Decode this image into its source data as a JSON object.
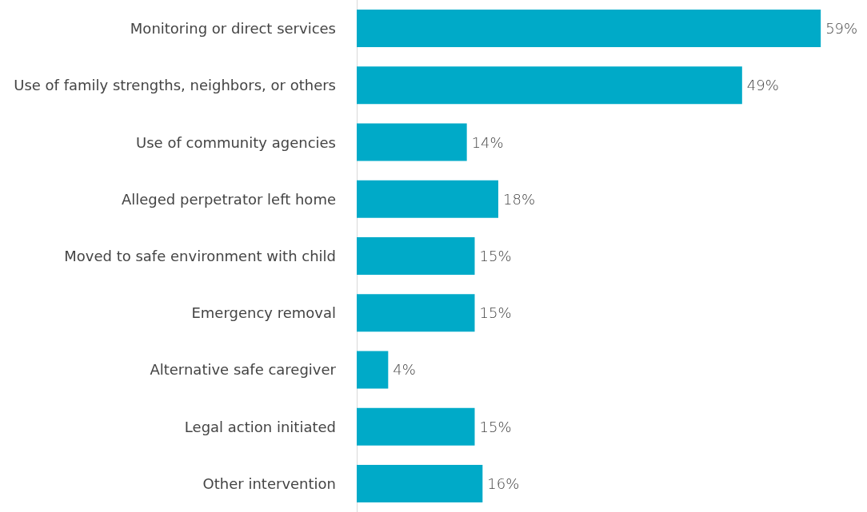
{
  "chart_data": {
    "type": "bar",
    "orientation": "horizontal",
    "categories": [
      "Monitoring or direct services",
      "Use of family strengths, neighbors, or others",
      "Use of community agencies",
      "Alleged perpetrator left home",
      "Moved to safe environment with child",
      "Emergency removal",
      "Alternative safe caregiver",
      "Legal action initiated",
      "Other intervention"
    ],
    "values": [
      59,
      49,
      14,
      18,
      15,
      15,
      4,
      15,
      16
    ],
    "value_labels": [
      "59%",
      "49%",
      "14%",
      "18%",
      "15%",
      "15%",
      "4%",
      "15%",
      "16%"
    ],
    "color": "#00aac8"
  }
}
